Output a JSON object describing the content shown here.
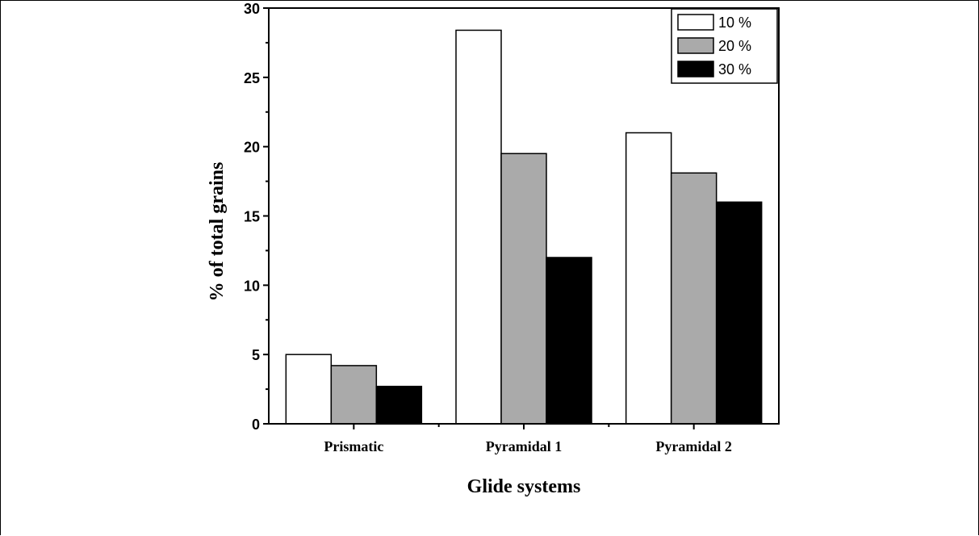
{
  "chart_data": {
    "type": "bar",
    "categories": [
      "Prismatic",
      "Pyramidal 1",
      "Pyramidal 2"
    ],
    "series": [
      {
        "name": "10 %",
        "values": [
          5.0,
          28.4,
          21.0
        ],
        "color": "#ffffff"
      },
      {
        "name": "20 %",
        "values": [
          4.2,
          19.5,
          18.1
        ],
        "color": "#aaaaaa"
      },
      {
        "name": "30 %",
        "values": [
          2.7,
          12.0,
          16.0
        ],
        "color": "#000000"
      }
    ],
    "xlabel": "Glide systems",
    "ylabel": "% of total grains",
    "ylim": [
      0,
      30
    ],
    "yticks": [
      0,
      5,
      10,
      15,
      20,
      25,
      30
    ],
    "legend_position": "top-right",
    "grid": false
  }
}
